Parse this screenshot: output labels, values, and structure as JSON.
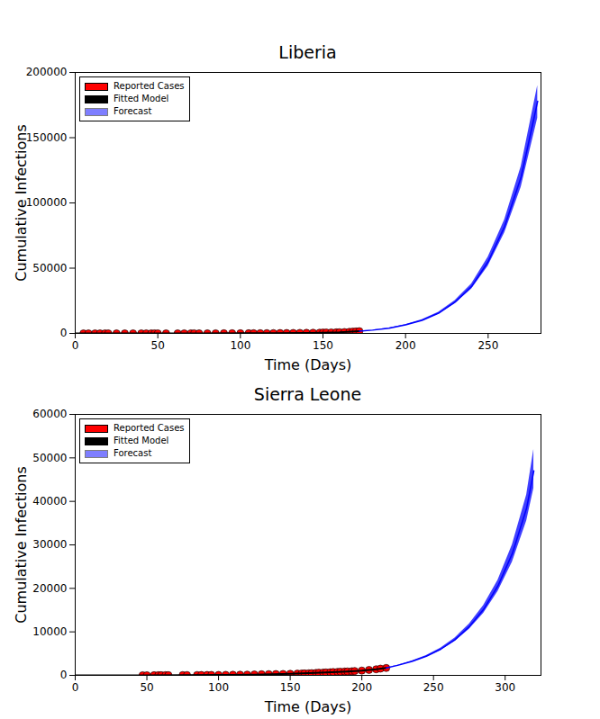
{
  "chart_data": [
    {
      "type": "line",
      "title": "Liberia",
      "xlabel": "Time (Days)",
      "ylabel": "Cumulative Infections",
      "xlim": [
        0,
        282
      ],
      "xticks": [
        0,
        50,
        100,
        150,
        200,
        250
      ],
      "ylim": [
        0,
        200000
      ],
      "yticks": [
        0,
        50000,
        100000,
        150000,
        200000
      ],
      "grid": false,
      "legend": "upper left",
      "series": [
        {
          "name": "Reported Cases",
          "type": "scatter",
          "marker": "o",
          "color": "#ff0000",
          "x": [
            5,
            8,
            12,
            15,
            18,
            20,
            25,
            30,
            35,
            40,
            43,
            46,
            48,
            50,
            55,
            62,
            66,
            70,
            72,
            75,
            80,
            85,
            90,
            95,
            100,
            105,
            108,
            112,
            116,
            120,
            124,
            128,
            132,
            136,
            140,
            144,
            148,
            150,
            152,
            155,
            158,
            160,
            163,
            166,
            168,
            170,
            172
          ],
          "values": [
            8,
            10,
            12,
            13,
            15,
            16,
            18,
            20,
            22,
            24,
            26,
            28,
            30,
            32,
            36,
            42,
            46,
            52,
            55,
            60,
            70,
            80,
            90,
            100,
            110,
            130,
            150,
            170,
            200,
            230,
            260,
            300,
            340,
            390,
            440,
            500,
            560,
            620,
            680,
            760,
            850,
            920,
            1050,
            1200,
            1350,
            1500,
            1700
          ]
        },
        {
          "name": "Fitted Model",
          "type": "line",
          "color": "#000000",
          "x": [
            0,
            20,
            40,
            60,
            80,
            100,
            120,
            140,
            150,
            160,
            165,
            172
          ],
          "values": [
            0,
            10,
            20,
            35,
            60,
            100,
            200,
            400,
            600,
            900,
            1200,
            1700
          ]
        },
        {
          "name": "Forecast",
          "type": "band",
          "color": "#0000ff",
          "x": [
            172,
            180,
            190,
            200,
            210,
            220,
            230,
            240,
            250,
            260,
            270,
            280
          ],
          "values": [
            1700,
            2500,
            4000,
            6500,
            10000,
            15500,
            24000,
            36000,
            55000,
            82000,
            120000,
            178000
          ],
          "lower": [
            1700,
            2400,
            3800,
            6200,
            9500,
            14800,
            22800,
            34000,
            51500,
            77000,
            112000,
            165000
          ],
          "upper": [
            1700,
            2600,
            4200,
            6800,
            10500,
            16200,
            25200,
            38000,
            58500,
            87000,
            128000,
            190000
          ]
        }
      ]
    },
    {
      "type": "line",
      "title": "Sierra Leone",
      "xlabel": "Time (Days)",
      "ylabel": "Cumulative Infections",
      "xlim": [
        0,
        325
      ],
      "xticks": [
        0,
        50,
        100,
        150,
        200,
        250,
        300
      ],
      "ylim": [
        0,
        60000
      ],
      "yticks": [
        0,
        10000,
        20000,
        30000,
        40000,
        50000,
        60000
      ],
      "grid": false,
      "legend": "upper left",
      "series": [
        {
          "name": "Reported Cases",
          "type": "scatter",
          "marker": "o",
          "color": "#ff0000",
          "x": [
            47,
            50,
            55,
            58,
            60,
            63,
            65,
            75,
            78,
            85,
            88,
            92,
            95,
            100,
            105,
            110,
            115,
            120,
            125,
            130,
            135,
            140,
            145,
            150,
            155,
            158,
            160,
            163,
            165,
            168,
            170,
            173,
            175,
            178,
            180,
            183,
            185,
            188,
            190,
            193,
            195,
            200,
            205,
            210,
            213,
            217
          ],
          "values": [
            20,
            25,
            30,
            35,
            40,
            45,
            50,
            60,
            65,
            75,
            80,
            88,
            95,
            100,
            115,
            130,
            150,
            170,
            200,
            250,
            280,
            300,
            320,
            350,
            390,
            420,
            450,
            480,
            510,
            550,
            600,
            640,
            670,
            720,
            760,
            800,
            840,
            880,
            900,
            950,
            1000,
            1100,
            1250,
            1400,
            1550,
            1700
          ]
        },
        {
          "name": "Fitted Model",
          "type": "line",
          "color": "#000000",
          "x": [
            0,
            25,
            50,
            75,
            100,
            125,
            150,
            175,
            190,
            200,
            210,
            217
          ],
          "values": [
            0,
            5,
            15,
            40,
            90,
            180,
            350,
            650,
            900,
            1100,
            1400,
            1700
          ]
        },
        {
          "name": "Forecast",
          "type": "band",
          "color": "#0000ff",
          "x": [
            217,
            225,
            235,
            245,
            255,
            265,
            275,
            285,
            295,
            305,
            315,
            320
          ],
          "values": [
            1700,
            2300,
            3200,
            4400,
            6000,
            8200,
            11200,
            15200,
            20600,
            28000,
            38500,
            47000
          ],
          "lower": [
            1700,
            2250,
            3100,
            4250,
            5750,
            7800,
            10600,
            14300,
            19300,
            26000,
            35500,
            43000
          ],
          "upper": [
            1700,
            2350,
            3300,
            4550,
            6250,
            8600,
            11800,
            16100,
            21900,
            30000,
            41500,
            52000
          ]
        }
      ]
    }
  ]
}
